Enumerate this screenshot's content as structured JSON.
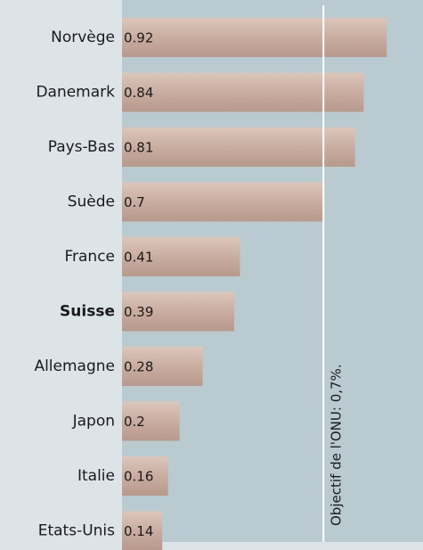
{
  "chart_data": {
    "type": "bar",
    "orientation": "horizontal",
    "categories": [
      "Norvège",
      "Danemark",
      "Pays-Bas",
      "Suède",
      "France",
      "Suisse",
      "Allemagne",
      "Japon",
      "Italie",
      "Etats-Unis"
    ],
    "values": [
      0.92,
      0.84,
      0.81,
      0.7,
      0.41,
      0.39,
      0.28,
      0.2,
      0.16,
      0.14
    ],
    "color": "#c4a89c",
    "highlight_index": 5,
    "xlim": [
      0,
      1.046
    ],
    "annotation": {
      "text": "Objectif de l'ONU: 0,7%.",
      "value": 0.7
    }
  }
}
